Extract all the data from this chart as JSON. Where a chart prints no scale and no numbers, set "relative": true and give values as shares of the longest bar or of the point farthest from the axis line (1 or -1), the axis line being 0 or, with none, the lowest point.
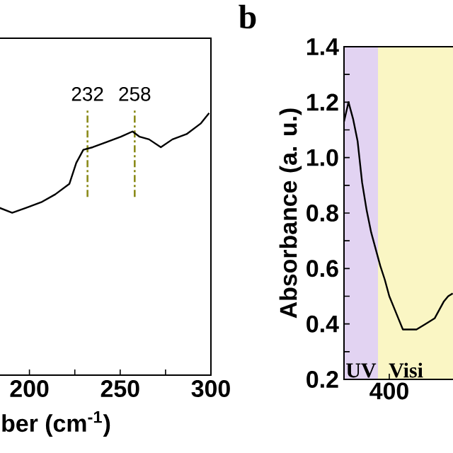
{
  "chart_data": [
    {
      "type": "line",
      "relative": true,
      "color": "#000000",
      "x": [
        183,
        190.5,
        198.7,
        206.5,
        214.2,
        222,
        225.8,
        229.7,
        234.9,
        242.6,
        250.4,
        256.8,
        260.7,
        265.9,
        272.4,
        278.8,
        286.6,
        294.3,
        299
      ],
      "values": [
        0.64,
        0.62,
        0.64,
        0.66,
        0.69,
        0.73,
        0.81,
        0.86,
        0.87,
        0.89,
        0.91,
        0.93,
        0.91,
        0.9,
        0.87,
        0.9,
        0.92,
        0.96,
        1.0
      ],
      "xlim": [
        183,
        300
      ],
      "xticks": [
        200,
        {
          "value": 225,
          "label": null
        },
        250,
        {
          "value": 275,
          "label": null
        },
        300
      ],
      "xlabel": "ber (cm$^{-1}$)",
      "ref_lines": [
        {
          "axis": "x",
          "value": 232,
          "label": "232",
          "color": "#8b8b1a",
          "line_style": "dashed"
        },
        {
          "axis": "x",
          "value": 258,
          "label": "258",
          "color": "#8b8b1a",
          "line_style": "dashed"
        }
      ]
    },
    {
      "type": "line",
      "title": "b",
      "color": "#000000",
      "categories": [
        null,
        null,
        null,
        null,
        null,
        null,
        null,
        null,
        null,
        null,
        null,
        null,
        null,
        null,
        null,
        null,
        null,
        null,
        null,
        null,
        null,
        null,
        null,
        null,
        null
      ],
      "values": [
        1.13,
        1.2,
        1.14,
        1.06,
        0.91,
        0.81,
        0.73,
        0.67,
        0.61,
        0.56,
        0.5,
        0.46,
        0.42,
        0.38,
        0.38,
        0.38,
        0.38,
        0.39,
        0.4,
        0.41,
        0.42,
        0.45,
        0.48,
        0.5,
        0.51
      ],
      "ylim": [
        0.2,
        1.4
      ],
      "yticks": [
        0.2,
        {
          "value": 0.3,
          "label": null
        },
        0.4,
        {
          "value": 0.5,
          "label": null
        },
        0.6,
        {
          "value": 0.7,
          "label": null
        },
        0.8,
        {
          "value": 0.9,
          "label": null
        },
        {
          "value": 1.0,
          "label": "1.0"
        },
        {
          "value": 1.1,
          "label": null
        },
        1.2,
        {
          "value": 1.3,
          "label": null
        },
        1.4
      ],
      "ylabel": "Absorbance (a. u.)",
      "annotations": [
        "400",
        "UV",
        "Visi"
      ]
    }
  ]
}
